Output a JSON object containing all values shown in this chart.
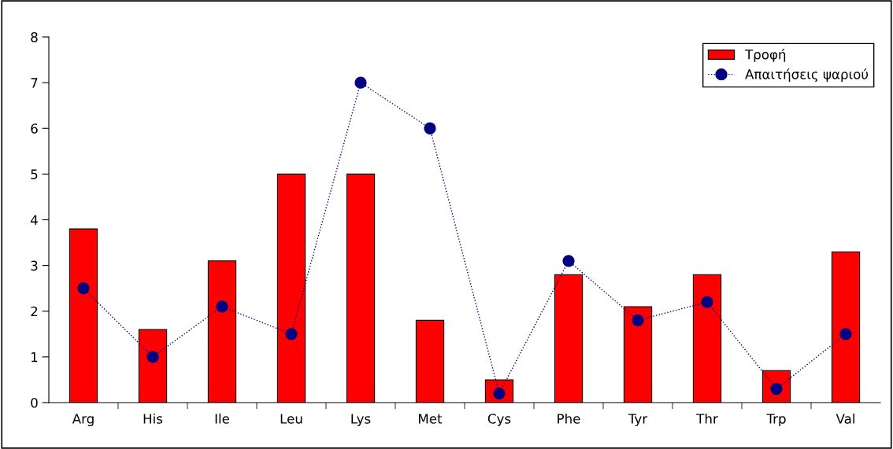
{
  "chart_data": {
    "type": "bar",
    "categories": [
      "Arg",
      "His",
      "Ile",
      "Leu",
      "Lys",
      "Met",
      "Cys",
      "Phe",
      "Tyr",
      "Thr",
      "Trp",
      "Val"
    ],
    "series": [
      {
        "name": "Τροφή",
        "color": "#ff0000",
        "values": [
          3.8,
          1.6,
          3.1,
          5.0,
          5.0,
          1.8,
          0.5,
          2.8,
          2.1,
          2.8,
          0.7,
          3.3
        ]
      },
      {
        "name": "Απαιτήσεις ψαριού",
        "type": "line",
        "color": "#000080",
        "marker": "circle",
        "line_style": "dotted",
        "values": [
          2.5,
          1.0,
          2.1,
          1.5,
          7.0,
          6.0,
          0.2,
          3.1,
          1.8,
          2.2,
          0.3,
          1.5
        ]
      }
    ],
    "ylim": [
      0,
      8
    ],
    "yticks": [
      0,
      1,
      2,
      3,
      4,
      5,
      6,
      7,
      8
    ],
    "grid": false,
    "legend": "top right"
  }
}
